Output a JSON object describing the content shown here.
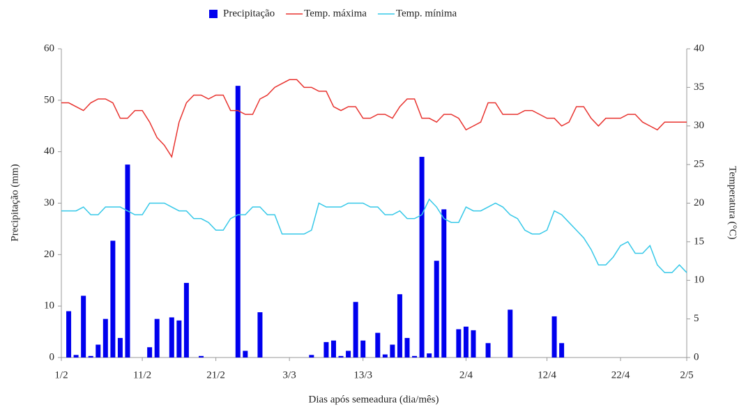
{
  "chart_data": {
    "type": "bar_line",
    "x_label": "Dias após semeadura (dia/mês)",
    "y_label": "Precipitação (mm)",
    "y2_label": "Temperatura (°C)",
    "categories": [
      "1/2",
      null,
      null,
      null,
      null,
      null,
      null,
      null,
      null,
      null,
      null,
      "11/2",
      null,
      null,
      null,
      null,
      null,
      null,
      null,
      null,
      null,
      "21/2",
      null,
      null,
      null,
      null,
      null,
      null,
      null,
      null,
      null,
      "3/3",
      null,
      null,
      null,
      null,
      null,
      null,
      null,
      null,
      null,
      "13/3",
      null,
      null,
      null,
      null,
      null,
      null,
      null,
      null,
      null,
      null,
      null,
      null,
      null,
      "2/4",
      null,
      null,
      null,
      null,
      null,
      null,
      null,
      null,
      null,
      null,
      "12/4",
      null,
      null,
      null,
      null,
      null,
      null,
      null,
      null,
      null,
      "22/4",
      null,
      null,
      null,
      null,
      null,
      null,
      null,
      null,
      "2/5"
    ],
    "ylim": [
      0,
      60
    ],
    "yticks": [
      0,
      10,
      20,
      30,
      40,
      50,
      60
    ],
    "y2lim": [
      0,
      40
    ],
    "y2ticks": [
      0,
      5,
      10,
      15,
      20,
      25,
      30,
      35,
      40
    ],
    "series": [
      {
        "name": "Precipitação",
        "kind": "bar",
        "color": "#0000ee",
        "values": [
          0,
          9,
          0.5,
          12,
          0.3,
          2.5,
          7.5,
          22.7,
          3.8,
          37.5,
          0,
          0,
          2,
          7.5,
          0,
          7.8,
          7.2,
          14.5,
          0,
          0.3,
          0,
          0,
          0,
          0,
          52.8,
          1.3,
          0,
          8.8,
          0,
          0,
          0,
          0,
          0,
          0,
          0.5,
          0,
          3,
          3.3,
          0.3,
          1.3,
          10.8,
          3.3,
          0,
          4.8,
          0.6,
          2.5,
          12.3,
          3.8,
          0.3,
          39,
          0.8,
          18.8,
          28.8,
          0,
          5.5,
          6,
          5.3,
          0,
          2.8,
          0,
          0,
          9.3,
          0,
          0,
          0,
          0,
          0,
          8,
          2.8,
          0,
          0,
          0,
          0,
          0,
          0,
          0,
          0,
          0,
          0,
          0,
          0,
          0,
          0,
          0,
          0,
          0
        ]
      },
      {
        "name": "Temp. máxima",
        "kind": "line",
        "axis": "y2",
        "color": "#e8322e",
        "values": [
          33,
          33,
          32.5,
          32,
          33,
          33.5,
          33.5,
          33,
          31,
          31,
          32,
          32,
          30.5,
          28.5,
          27.5,
          26,
          30.5,
          33,
          34,
          34,
          33.5,
          34,
          34,
          32,
          32,
          31.5,
          31.5,
          33.5,
          34,
          35,
          35.5,
          36,
          36,
          35,
          35,
          34.5,
          34.5,
          32.5,
          32,
          32.5,
          32.5,
          31,
          31,
          31.5,
          31.5,
          31,
          32.5,
          33.5,
          33.5,
          31,
          31,
          30.5,
          31.5,
          31.5,
          31,
          29.5,
          30,
          30.5,
          33,
          33,
          31.5,
          31.5,
          31.5,
          32,
          32,
          31.5,
          31,
          31,
          30,
          30.5,
          32.5,
          32.5,
          31,
          30,
          31,
          31,
          31,
          31.5,
          31.5,
          30.5,
          30,
          29.5,
          30.5,
          30.5,
          30.5,
          30.5
        ]
      },
      {
        "name": "Temp. mínima",
        "kind": "line",
        "axis": "y2",
        "color": "#35c8e8",
        "values": [
          19,
          19,
          19,
          19.5,
          18.5,
          18.5,
          19.5,
          19.5,
          19.5,
          19,
          18.5,
          18.5,
          20,
          20,
          20,
          19.5,
          19,
          19,
          18,
          18,
          17.5,
          16.5,
          16.5,
          18,
          18.5,
          18.5,
          19.5,
          19.5,
          18.5,
          18.5,
          16,
          16,
          16,
          16,
          16.5,
          20,
          19.5,
          19.5,
          19.5,
          20,
          20,
          20,
          19.5,
          19.5,
          18.5,
          18.5,
          19,
          18,
          18,
          18.5,
          20.5,
          19.5,
          18,
          17.5,
          17.5,
          19.5,
          19,
          19,
          19.5,
          20,
          19.5,
          18.5,
          18,
          16.5,
          16,
          16,
          16.5,
          19,
          18.5,
          17.5,
          16.5,
          15.5,
          14,
          12,
          12,
          13,
          14.5,
          15,
          13.5,
          13.5,
          14.5,
          12,
          11,
          11,
          12,
          11
        ]
      }
    ]
  }
}
